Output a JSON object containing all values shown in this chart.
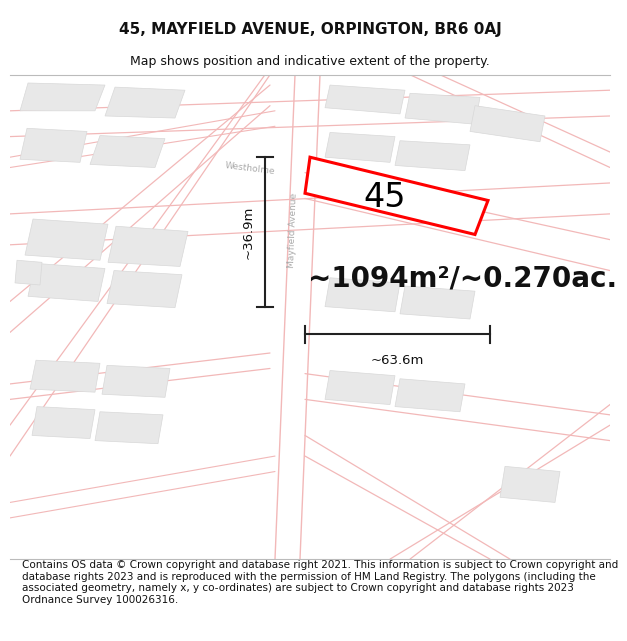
{
  "title": "45, MAYFIELD AVENUE, ORPINGTON, BR6 0AJ",
  "subtitle": "Map shows position and indicative extent of the property.",
  "footer": "Contains OS data © Crown copyright and database right 2021. This information is subject to Crown copyright and database rights 2023 and is reproduced with the permission of HM Land Registry. The polygons (including the associated geometry, namely x, y co-ordinates) are subject to Crown copyright and database rights 2023 Ordnance Survey 100026316.",
  "area_text": "~1094m²/~0.270ac.",
  "width_label": "~63.6m",
  "height_label": "~36.9m",
  "number_label": "45",
  "bg_color": "#ffffff",
  "map_bg": "#ffffff",
  "road_color": "#f2b8b8",
  "block_color": "#e8e8e8",
  "block_edge": "#d8d8d8",
  "highlight_color": "#ff0000",
  "title_fontsize": 11,
  "subtitle_fontsize": 9,
  "footer_fontsize": 7.5,
  "area_fontsize": 20,
  "label_fontsize": 9.5,
  "number_fontsize": 24,
  "street_label_fontsize": 6.5,
  "dim_line_color": "#222222"
}
